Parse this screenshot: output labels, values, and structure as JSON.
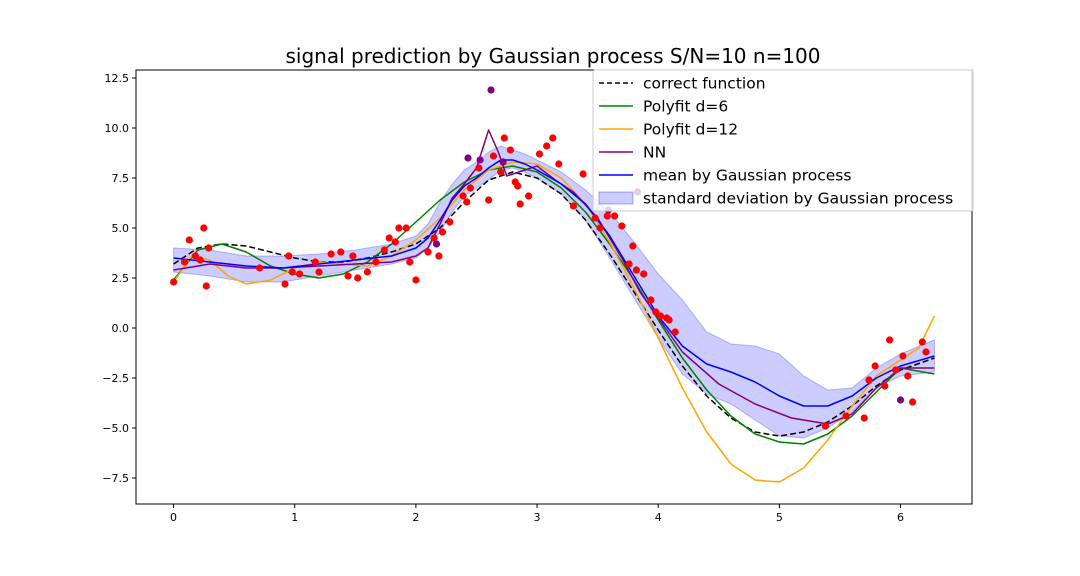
{
  "chart_data": {
    "type": "line",
    "title": "signal prediction by Gaussian process S/N=10 n=100",
    "xlabel": "",
    "ylabel": "",
    "xlim": [
      -0.31,
      6.59
    ],
    "ylim": [
      -8.8,
      12.9
    ],
    "xticks": [
      0,
      1,
      2,
      3,
      4,
      5,
      6
    ],
    "yticks": [
      -7.5,
      -5.0,
      -2.5,
      0.0,
      2.5,
      5.0,
      7.5,
      10.0,
      12.5
    ],
    "ytick_labels": [
      "−7.5",
      "−5.0",
      "−2.5",
      "0.0",
      "2.5",
      "5.0",
      "7.5",
      "10.0",
      "12.5"
    ],
    "grid": false,
    "legend_position": "top-right",
    "colors": {
      "correct": "#000000",
      "poly6": "#008000",
      "poly12": "#ffa500",
      "nn": "#800080",
      "gp_mean": "#0000ff",
      "gp_band": "#0000ff",
      "points": "#ff0000",
      "points_alt": "#800080"
    },
    "legend": [
      {
        "key": "correct",
        "label": "correct function",
        "style": "dashed"
      },
      {
        "key": "poly6",
        "label": "Polyfit d=6",
        "style": "line"
      },
      {
        "key": "poly12",
        "label": "Polyfit d=12",
        "style": "line"
      },
      {
        "key": "nn",
        "label": "NN",
        "style": "line"
      },
      {
        "key": "gp_mean",
        "label": "mean by Gaussian process",
        "style": "line"
      },
      {
        "key": "gp_band",
        "label": "standard deviation by Gaussian process",
        "style": "band"
      }
    ],
    "series": [
      {
        "key": "correct",
        "name": "correct function",
        "x": [
          0,
          0.2,
          0.4,
          0.6,
          0.8,
          1.0,
          1.2,
          1.4,
          1.6,
          1.8,
          2.0,
          2.2,
          2.4,
          2.6,
          2.8,
          3.0,
          3.2,
          3.4,
          3.6,
          3.8,
          4.0,
          4.2,
          4.4,
          4.6,
          4.8,
          5.0,
          5.2,
          5.4,
          5.6,
          5.8,
          6.0,
          6.28
        ],
        "y": [
          3.2,
          4.0,
          4.2,
          4.1,
          3.8,
          3.5,
          3.3,
          3.3,
          3.5,
          3.8,
          4.2,
          5.0,
          6.3,
          7.4,
          7.8,
          7.5,
          6.7,
          5.4,
          3.7,
          1.8,
          -0.1,
          -1.9,
          -3.4,
          -4.5,
          -5.2,
          -5.4,
          -5.2,
          -4.7,
          -3.9,
          -2.9,
          -2.1,
          -1.5
        ]
      },
      {
        "key": "poly6",
        "name": "Polyfit d=6",
        "x": [
          0,
          0.2,
          0.4,
          0.6,
          0.8,
          1.0,
          1.2,
          1.4,
          1.6,
          1.8,
          2.0,
          2.2,
          2.4,
          2.6,
          2.8,
          3.0,
          3.2,
          3.4,
          3.6,
          3.8,
          4.0,
          4.2,
          4.4,
          4.6,
          4.8,
          5.0,
          5.2,
          5.4,
          5.6,
          5.8,
          6.0,
          6.28
        ],
        "y": [
          2.4,
          3.9,
          4.2,
          3.8,
          3.1,
          2.7,
          2.5,
          2.7,
          3.3,
          4.2,
          5.3,
          6.4,
          7.3,
          7.9,
          8.1,
          7.8,
          7.0,
          5.8,
          4.2,
          2.4,
          0.4,
          -1.5,
          -3.1,
          -4.4,
          -5.3,
          -5.7,
          -5.8,
          -5.3,
          -4.4,
          -3.2,
          -2.0,
          -2.3
        ]
      },
      {
        "key": "poly12",
        "name": "Polyfit d=12",
        "x": [
          0,
          0.15,
          0.3,
          0.45,
          0.6,
          0.8,
          1.0,
          1.2,
          1.4,
          1.6,
          1.8,
          2.0,
          2.2,
          2.4,
          2.6,
          2.8,
          3.0,
          3.2,
          3.4,
          3.6,
          3.8,
          4.0,
          4.2,
          4.4,
          4.6,
          4.8,
          5.0,
          5.2,
          5.4,
          5.6,
          5.8,
          6.0,
          6.15,
          6.28
        ],
        "y": [
          2.3,
          3.6,
          3.4,
          2.6,
          2.2,
          2.4,
          3.0,
          3.3,
          3.2,
          3.1,
          3.6,
          4.4,
          5.5,
          6.9,
          7.9,
          8.3,
          8.2,
          7.5,
          6.2,
          4.3,
          2.0,
          -0.5,
          -3.0,
          -5.2,
          -6.8,
          -7.6,
          -7.7,
          -7.0,
          -5.6,
          -3.9,
          -2.4,
          -1.6,
          -1.0,
          0.6
        ]
      },
      {
        "key": "nn",
        "name": "NN",
        "x": [
          0,
          0.3,
          0.6,
          0.9,
          1.2,
          1.5,
          1.8,
          2.0,
          2.1,
          2.2,
          2.3,
          2.4,
          2.5,
          2.6,
          2.68,
          2.75,
          2.85,
          3.0,
          3.15,
          3.3,
          3.5,
          3.7,
          3.85,
          4.0,
          4.2,
          4.5,
          4.8,
          5.1,
          5.4,
          5.6,
          5.8,
          6.0,
          6.28
        ],
        "y": [
          2.9,
          3.2,
          3.0,
          3.0,
          3.1,
          3.2,
          3.3,
          3.6,
          4.0,
          5.2,
          6.5,
          7.2,
          8.0,
          9.9,
          8.8,
          7.6,
          7.8,
          8.1,
          7.4,
          6.8,
          5.5,
          3.5,
          1.8,
          0.5,
          -1.2,
          -2.8,
          -3.8,
          -4.5,
          -4.8,
          -4.3,
          -3.0,
          -2.0,
          -2.0
        ]
      },
      {
        "key": "gp_mean",
        "name": "mean by Gaussian process",
        "x": [
          0,
          0.3,
          0.6,
          0.9,
          1.2,
          1.5,
          1.8,
          2.0,
          2.1,
          2.2,
          2.3,
          2.4,
          2.5,
          2.6,
          2.7,
          2.8,
          2.9,
          3.0,
          3.2,
          3.4,
          3.6,
          3.8,
          4.0,
          4.2,
          4.4,
          4.6,
          4.8,
          5.0,
          5.2,
          5.4,
          5.6,
          5.8,
          6.0,
          6.28
        ],
        "y": [
          3.5,
          3.3,
          3.1,
          3.0,
          3.2,
          3.4,
          3.6,
          4.0,
          4.5,
          5.4,
          6.4,
          7.1,
          7.5,
          8.0,
          8.4,
          8.4,
          8.2,
          7.9,
          7.2,
          6.2,
          4.6,
          2.6,
          0.6,
          -0.9,
          -1.8,
          -2.2,
          -2.7,
          -3.4,
          -3.9,
          -3.9,
          -3.4,
          -2.5,
          -1.9,
          -1.4
        ]
      },
      {
        "key": "gp_band",
        "name": "standard deviation by Gaussian process",
        "x": [
          0,
          0.3,
          0.6,
          0.9,
          1.2,
          1.5,
          1.8,
          2.0,
          2.1,
          2.2,
          2.3,
          2.4,
          2.5,
          2.6,
          2.7,
          2.8,
          2.9,
          3.0,
          3.2,
          3.4,
          3.6,
          3.8,
          4.0,
          4.2,
          4.4,
          4.6,
          4.8,
          5.0,
          5.2,
          5.4,
          5.6,
          5.8,
          6.0,
          6.28
        ],
        "upper": [
          4.0,
          3.9,
          3.6,
          3.6,
          3.7,
          3.9,
          4.2,
          4.6,
          5.2,
          6.3,
          7.2,
          7.9,
          8.3,
          8.8,
          9.1,
          8.9,
          8.7,
          8.4,
          7.8,
          6.9,
          5.8,
          4.3,
          2.7,
          1.4,
          -0.2,
          -0.8,
          -0.9,
          -1.3,
          -2.4,
          -3.1,
          -3.0,
          -2.0,
          -1.3,
          -0.6
        ],
        "lower": [
          2.8,
          2.6,
          2.3,
          2.3,
          2.6,
          2.9,
          3.2,
          3.5,
          4.0,
          4.8,
          5.8,
          6.6,
          7.0,
          7.4,
          7.9,
          8.0,
          7.8,
          7.5,
          6.7,
          5.4,
          3.5,
          1.5,
          -0.5,
          -2.3,
          -3.3,
          -3.8,
          -4.6,
          -5.4,
          -5.5,
          -5.0,
          -4.2,
          -3.0,
          -2.4,
          -2.2
        ]
      },
      {
        "key": "points",
        "name": "",
        "x": [
          0.0,
          0.09,
          0.13,
          0.18,
          0.22,
          0.25,
          0.27,
          0.29,
          0.71,
          0.92,
          0.95,
          0.98,
          1.04,
          1.17,
          1.2,
          1.3,
          1.38,
          1.44,
          1.48,
          1.52,
          1.6,
          1.67,
          1.74,
          1.78,
          1.83,
          1.86,
          1.92,
          1.95,
          2.0,
          2.1,
          2.15,
          2.19,
          2.22,
          2.28,
          2.39,
          2.42,
          2.45,
          2.52,
          2.6,
          2.64,
          2.7,
          2.73,
          2.78,
          2.82,
          2.84,
          2.86,
          2.93,
          3.02,
          3.08,
          3.13,
          3.18,
          3.3,
          3.38,
          3.48,
          3.52,
          3.58,
          3.64,
          3.7,
          3.76,
          3.79,
          3.82,
          3.88,
          3.94,
          3.98,
          4.02,
          4.07,
          4.09,
          4.14,
          5.38,
          5.55,
          5.7,
          5.74,
          5.79,
          5.87,
          5.91,
          5.96,
          6.02,
          6.06,
          6.1,
          6.18,
          6.21
        ],
        "y": [
          2.3,
          3.3,
          4.4,
          3.6,
          3.4,
          5.0,
          2.1,
          4.0,
          3.0,
          2.2,
          3.6,
          2.8,
          2.7,
          3.3,
          2.8,
          3.7,
          3.8,
          2.6,
          3.6,
          2.5,
          2.8,
          3.3,
          3.9,
          4.5,
          4.3,
          5.0,
          5.0,
          3.3,
          2.4,
          3.8,
          4.5,
          3.6,
          4.8,
          5.3,
          6.6,
          6.3,
          7.0,
          8.0,
          6.4,
          8.6,
          7.8,
          9.5,
          8.9,
          7.3,
          7.1,
          6.2,
          6.6,
          8.7,
          9.1,
          9.5,
          8.2,
          6.1,
          7.7,
          5.5,
          5.0,
          5.6,
          5.6,
          5.1,
          3.2,
          4.1,
          2.9,
          2.7,
          1.4,
          0.8,
          0.6,
          0.5,
          0.4,
          -0.2,
          -4.9,
          -4.4,
          -4.5,
          -2.6,
          -1.9,
          -2.9,
          -0.6,
          -2.1,
          -1.4,
          -2.4,
          -3.7,
          -0.7,
          -1.2
        ]
      },
      {
        "key": "points_alt",
        "name": "",
        "x": [
          2.17,
          2.43,
          2.53,
          2.62,
          2.72,
          3.59,
          3.83,
          6.0
        ],
        "y": [
          4.2,
          8.5,
          8.4,
          11.9,
          8.3,
          5.9,
          6.8,
          -3.6
        ]
      }
    ]
  }
}
